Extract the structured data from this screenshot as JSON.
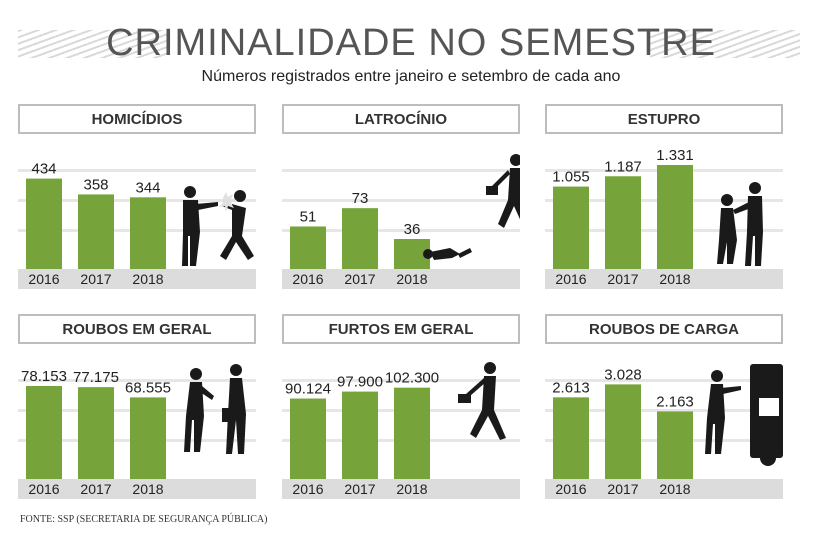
{
  "header": {
    "title": "CRIMINALIDADE NO SEMESTRE",
    "subtitle": "Números registrados entre janeiro e setembro de cada ano"
  },
  "footer": {
    "source": "FONTE: SSP (SECRETARIA DE SEGURANÇA PÚBLICA)"
  },
  "colors": {
    "bar": "#76a33a",
    "axis_band": "#dcdcdc",
    "gridline": "#e6e6e6",
    "silhouette": "#1a1a1a"
  },
  "chart_data": [
    {
      "type": "bar",
      "title": "HOMICÍDIOS",
      "categories": [
        "2016",
        "2017",
        "2018"
      ],
      "values": [
        434,
        358,
        344
      ],
      "labels": [
        "434",
        "358",
        "344"
      ],
      "icon": "shooting-silhouette-icon"
    },
    {
      "type": "bar",
      "title": "LATROCÍNIO",
      "categories": [
        "2016",
        "2017",
        "2018"
      ],
      "values": [
        51,
        73,
        36
      ],
      "labels": [
        "51",
        "73",
        "36"
      ],
      "icon": "robber-fleeing-victim-icon"
    },
    {
      "type": "bar",
      "title": "ESTUPRO",
      "categories": [
        "2016",
        "2017",
        "2018"
      ],
      "values": [
        1055,
        1187,
        1331
      ],
      "labels": [
        "1.055",
        "1.187",
        "1.331"
      ],
      "icon": "assault-silhouette-icon"
    },
    {
      "type": "bar",
      "title": "ROUBOS EM GERAL",
      "categories": [
        "2016",
        "2017",
        "2018"
      ],
      "values": [
        78153,
        77175,
        68555
      ],
      "labels": [
        "78.153",
        "77.175",
        "68.555"
      ],
      "icon": "robbery-silhouette-icon"
    },
    {
      "type": "bar",
      "title": "FURTOS EM GERAL",
      "categories": [
        "2016",
        "2017",
        "2018"
      ],
      "values": [
        90124,
        97900,
        102300
      ],
      "labels": [
        "90.124",
        "97.900",
        "102.300"
      ],
      "icon": "thief-running-icon"
    },
    {
      "type": "bar",
      "title": "ROUBOS DE CARGA",
      "categories": [
        "2016",
        "2017",
        "2018"
      ],
      "values": [
        2613,
        3028,
        2163
      ],
      "labels": [
        "2.613",
        "3.028",
        "2.163"
      ],
      "icon": "truck-robbery-icon"
    }
  ]
}
